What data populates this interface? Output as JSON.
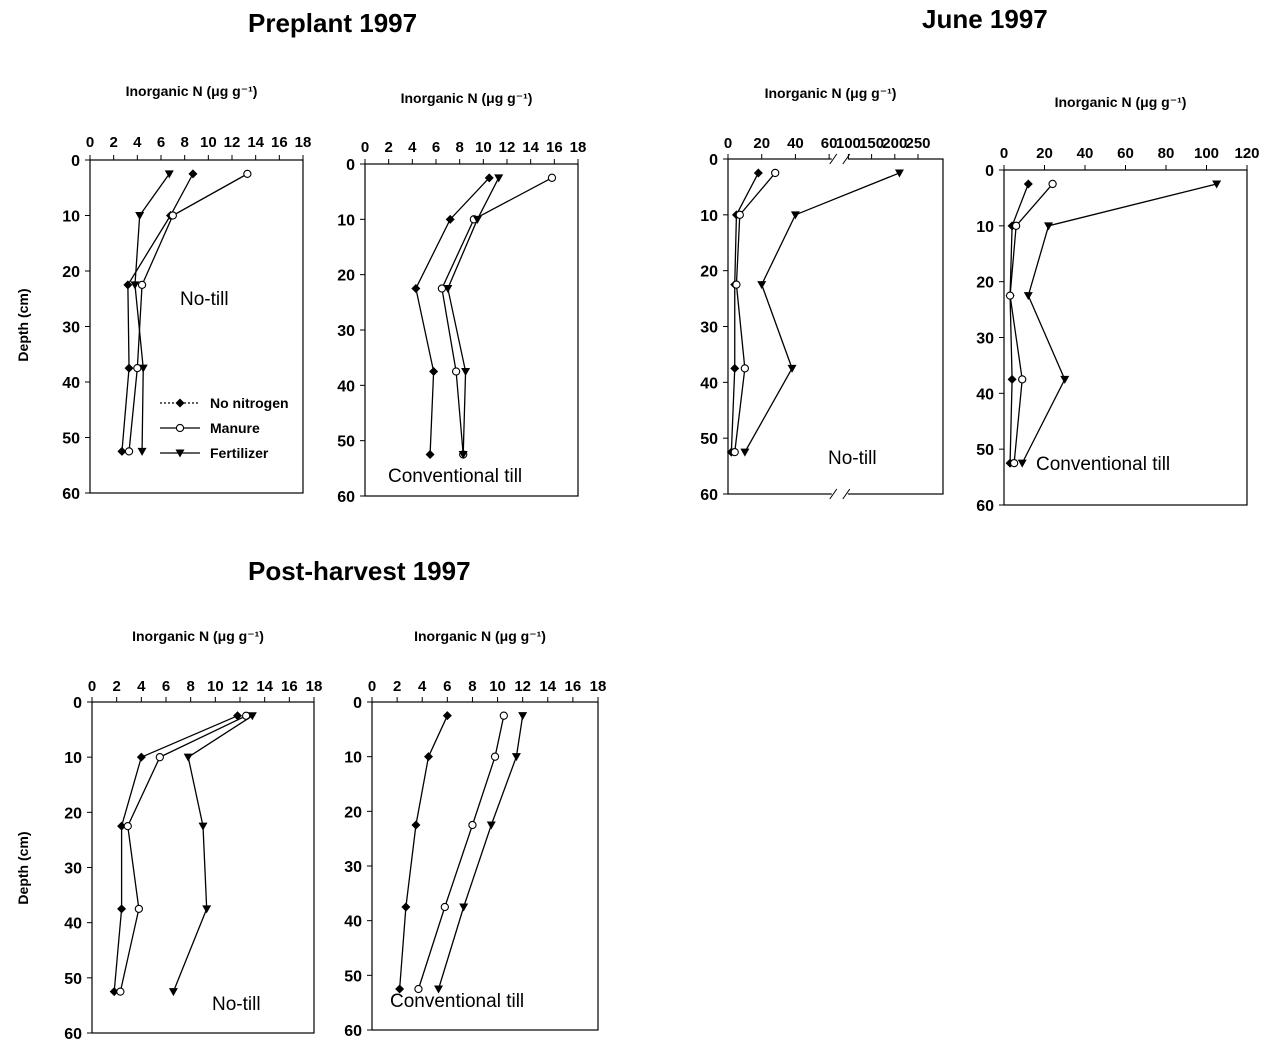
{
  "figure": {
    "section_titles": {
      "preplant": "Preplant 1997",
      "june": "June 1997",
      "post": "Post-harvest 1997"
    },
    "ylabel": "Depth (cm)",
    "xlabel": "Inorganic N (μg g⁻¹)",
    "legend": [
      "No nitrogen",
      "Manure",
      "Fertilizer"
    ]
  },
  "chart_data": [
    {
      "type": "line",
      "title": "Preplant 1997",
      "panel_label": "No-till",
      "xlabel": "Inorganic N (μg g⁻¹)",
      "ylabel": "Depth (cm)",
      "xlim": [
        0,
        18
      ],
      "ylim": [
        0,
        60
      ],
      "xticks": [
        0,
        2,
        4,
        6,
        8,
        10,
        12,
        14,
        16,
        18
      ],
      "yticks": [
        0,
        10,
        20,
        30,
        40,
        50,
        60
      ],
      "y_inverted": true,
      "legend_position": "bottom-right",
      "series": [
        {
          "name": "No nitrogen",
          "x": [
            8.7,
            6.8,
            3.2,
            3.3,
            2.7
          ],
          "y": [
            2.5,
            10,
            22.5,
            37.5,
            52.5
          ]
        },
        {
          "name": "Manure",
          "x": [
            13.3,
            7.0,
            4.4,
            4.0,
            3.3
          ],
          "y": [
            2.5,
            10,
            22.5,
            37.5,
            52.5
          ]
        },
        {
          "name": "Fertilizer",
          "x": [
            6.7,
            4.2,
            3.8,
            4.5,
            4.4
          ],
          "y": [
            2.5,
            10,
            22.5,
            37.5,
            52.5
          ]
        }
      ]
    },
    {
      "type": "line",
      "title": "Preplant 1997",
      "panel_label": "Conventional till",
      "xlabel": "Inorganic N (μg g⁻¹)",
      "xlim": [
        0,
        18
      ],
      "ylim": [
        0,
        60
      ],
      "xticks": [
        0,
        2,
        4,
        6,
        8,
        10,
        12,
        14,
        16,
        18
      ],
      "yticks": [
        0,
        10,
        20,
        30,
        40,
        50,
        60
      ],
      "y_inverted": true,
      "series": [
        {
          "name": "No nitrogen",
          "x": [
            10.5,
            7.2,
            4.3,
            5.8,
            5.5
          ],
          "y": [
            2.5,
            10,
            22.5,
            37.5,
            52.5
          ]
        },
        {
          "name": "Manure",
          "x": [
            15.8,
            9.2,
            6.5,
            7.7,
            8.3
          ],
          "y": [
            2.5,
            10,
            22.5,
            37.5,
            52.5
          ]
        },
        {
          "name": "Fertilizer",
          "x": [
            11.3,
            9.5,
            7.0,
            8.5,
            8.3
          ],
          "y": [
            2.5,
            10,
            22.5,
            37.5,
            52.5
          ]
        }
      ]
    },
    {
      "type": "line",
      "title": "June 1997",
      "panel_label": "No-till",
      "xlabel": "Inorganic N (μg g⁻¹)",
      "ylabel": "",
      "x_axis_break": "between 60 and 100",
      "xticks": [
        0,
        20,
        40,
        60,
        100,
        150,
        200,
        250
      ],
      "ylim": [
        0,
        60
      ],
      "yticks": [
        0,
        10,
        20,
        30,
        40,
        50,
        60
      ],
      "y_inverted": true,
      "series": [
        {
          "name": "No nitrogen",
          "x": [
            18,
            5,
            4,
            4,
            2
          ],
          "y": [
            2.5,
            10,
            22.5,
            37.5,
            52.5
          ]
        },
        {
          "name": "Manure",
          "x": [
            28,
            7,
            5,
            10,
            4
          ],
          "y": [
            2.5,
            10,
            22.5,
            37.5,
            52.5
          ]
        },
        {
          "name": "Fertilizer",
          "x": [
            210,
            40,
            20,
            38,
            10
          ],
          "y": [
            2.5,
            10,
            22.5,
            37.5,
            52.5
          ]
        }
      ]
    },
    {
      "type": "line",
      "title": "June 1997",
      "panel_label": "Conventional till",
      "xlabel": "Inorganic N (μg g⁻¹)",
      "xlim": [
        0,
        120
      ],
      "ylim": [
        0,
        60
      ],
      "xticks": [
        0,
        20,
        40,
        60,
        80,
        100,
        120
      ],
      "yticks": [
        0,
        10,
        20,
        30,
        40,
        50,
        60
      ],
      "y_inverted": true,
      "series": [
        {
          "name": "No nitrogen",
          "x": [
            12,
            4,
            3,
            4,
            3
          ],
          "y": [
            2.5,
            10,
            22.5,
            37.5,
            52.5
          ]
        },
        {
          "name": "Manure",
          "x": [
            24,
            6,
            3,
            9,
            5
          ],
          "y": [
            2.5,
            10,
            22.5,
            37.5,
            52.5
          ]
        },
        {
          "name": "Fertilizer",
          "x": [
            105,
            22,
            12,
            30,
            9
          ],
          "y": [
            2.5,
            10,
            22.5,
            37.5,
            52.5
          ]
        }
      ]
    },
    {
      "type": "line",
      "title": "Post-harvest 1997",
      "panel_label": "No-till",
      "xlabel": "Inorganic N (μg g⁻¹)",
      "ylabel": "Depth (cm)",
      "xlim": [
        0,
        18
      ],
      "ylim": [
        0,
        60
      ],
      "xticks": [
        0,
        2,
        4,
        6,
        8,
        10,
        12,
        14,
        16,
        18
      ],
      "yticks": [
        0,
        10,
        20,
        30,
        40,
        50,
        60
      ],
      "y_inverted": true,
      "series": [
        {
          "name": "No nitrogen",
          "x": [
            11.8,
            4.0,
            2.4,
            2.4,
            1.8
          ],
          "y": [
            2.5,
            10,
            22.5,
            37.5,
            52.5
          ]
        },
        {
          "name": "Manure",
          "x": [
            12.5,
            5.5,
            2.9,
            3.8,
            2.3
          ],
          "y": [
            2.5,
            10,
            22.5,
            37.5,
            52.5
          ]
        },
        {
          "name": "Fertilizer",
          "x": [
            13.0,
            7.8,
            9.0,
            9.3,
            6.6
          ],
          "y": [
            2.5,
            10,
            22.5,
            37.5,
            52.5
          ]
        }
      ]
    },
    {
      "type": "line",
      "title": "Post-harvest 1997",
      "panel_label": "Conventional till",
      "xlabel": "Inorganic N (μg g⁻¹)",
      "xlim": [
        0,
        18
      ],
      "ylim": [
        0,
        60
      ],
      "xticks": [
        0,
        2,
        4,
        6,
        8,
        10,
        12,
        14,
        16,
        18
      ],
      "yticks": [
        0,
        10,
        20,
        30,
        40,
        50,
        60
      ],
      "y_inverted": true,
      "series": [
        {
          "name": "No nitrogen",
          "x": [
            6.0,
            4.5,
            3.5,
            2.7,
            2.2
          ],
          "y": [
            2.5,
            10,
            22.5,
            37.5,
            52.5
          ]
        },
        {
          "name": "Manure",
          "x": [
            10.5,
            9.8,
            8.0,
            5.8,
            3.7
          ],
          "y": [
            2.5,
            10,
            22.5,
            37.5,
            52.5
          ]
        },
        {
          "name": "Fertilizer",
          "x": [
            12.0,
            11.5,
            9.5,
            7.3,
            5.3
          ],
          "y": [
            2.5,
            10,
            22.5,
            37.5,
            52.5
          ]
        }
      ]
    }
  ]
}
